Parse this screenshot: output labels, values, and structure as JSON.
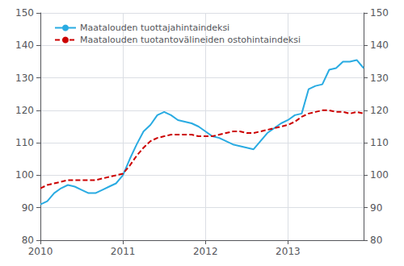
{
  "chart_data": {
    "type": "line",
    "categories": [
      "2010",
      null,
      null,
      null,
      null,
      null,
      null,
      null,
      null,
      null,
      null,
      null,
      "2011",
      null,
      null,
      null,
      null,
      null,
      null,
      null,
      null,
      null,
      null,
      null,
      "2012",
      null,
      null,
      null,
      null,
      null,
      null,
      null,
      null,
      null,
      null,
      null,
      "2013",
      null,
      null,
      null,
      null,
      null,
      null,
      null,
      null,
      null,
      null,
      null
    ],
    "series": [
      {
        "name": "Maatalouden tuottajahintaindeksi",
        "color": "#29abe2",
        "line_style": "solid",
        "values": [
          91.0,
          92.0,
          94.5,
          96.0,
          97.0,
          96.5,
          95.5,
          94.5,
          94.5,
          95.5,
          96.5,
          97.5,
          100.0,
          105.0,
          109.5,
          113.5,
          115.5,
          118.5,
          119.5,
          118.5,
          117.0,
          116.5,
          116.0,
          115.0,
          113.5,
          112.0,
          111.5,
          110.5,
          109.5,
          109.0,
          108.5,
          108.0,
          110.5,
          113.0,
          114.5,
          116.0,
          117.0,
          118.5,
          119.0,
          126.5,
          127.5,
          128.0,
          132.5,
          133.0,
          135.0,
          135.0,
          135.5,
          133.0
        ]
      },
      {
        "name": "Maatalouden tuotantovälineiden ostohintaindeksi",
        "color": "#cc0000",
        "line_style": "dashed",
        "values": [
          96.0,
          97.0,
          97.5,
          98.0,
          98.5,
          98.5,
          98.5,
          98.5,
          98.5,
          99.0,
          99.5,
          100.0,
          100.5,
          103.0,
          106.0,
          108.5,
          110.5,
          111.5,
          112.0,
          112.5,
          112.5,
          112.5,
          112.5,
          112.0,
          112.0,
          112.0,
          112.5,
          113.0,
          113.5,
          113.5,
          113.0,
          113.0,
          113.5,
          114.0,
          114.5,
          115.0,
          115.5,
          116.5,
          118.0,
          119.0,
          119.5,
          120.0,
          120.0,
          119.5,
          119.5,
          119.0,
          119.5,
          119.0
        ]
      }
    ],
    "ylim": [
      80,
      150
    ],
    "yticks": [
      80,
      90,
      100,
      110,
      120,
      130,
      140,
      150
    ],
    "y2lim": [
      80,
      150
    ],
    "y2ticks": [
      80,
      90,
      100,
      110,
      120,
      130,
      140,
      150
    ],
    "grid": true,
    "legend": "upper left"
  }
}
